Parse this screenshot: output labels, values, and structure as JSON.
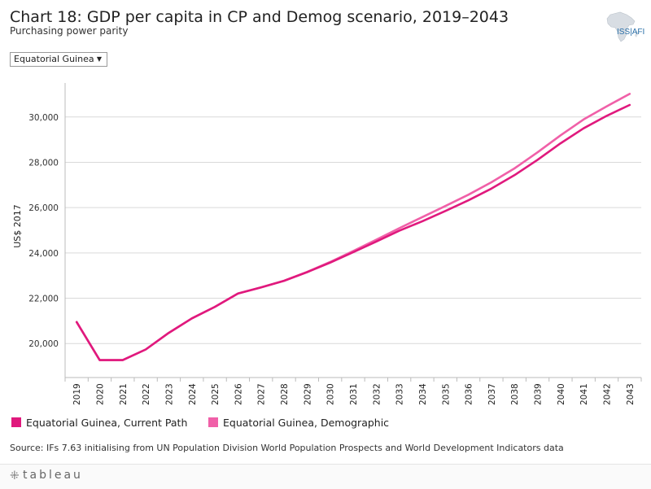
{
  "header": {
    "title": "Chart 18: GDP per capita in CP and Demog scenario, 2019–2043",
    "subtitle": "Purchasing power parity",
    "logo_text": "ISS|AFI"
  },
  "filter": {
    "selected": "Equatorial Guinea",
    "arrow": "▼"
  },
  "legend": [
    {
      "label": "Equatorial Guinea, Current Path",
      "color": "#e0197d"
    },
    {
      "label": "Equatorial Guinea, Demographic",
      "color": "#f060a8"
    }
  ],
  "source_note": "Source: IFs 7.63 initialising from UN Population Division World Population Prospects and World Development Indicators data",
  "footer": {
    "brand": "tableau",
    "mark": "⁜"
  },
  "chart_data": {
    "type": "line",
    "title": "Chart 18: GDP per capita in CP and Demog scenario, 2019–2043",
    "ylabel": "US$ 2017",
    "xlabel": "",
    "ylim": [
      18500,
      31500
    ],
    "yticks": [
      20000,
      22000,
      24000,
      26000,
      28000,
      30000
    ],
    "ytick_labels": [
      "20,000",
      "22,000",
      "24,000",
      "26,000",
      "28,000",
      "30,000"
    ],
    "x": [
      "2019",
      "2020",
      "2021",
      "2022",
      "2023",
      "2024",
      "2025",
      "2026",
      "2027",
      "2028",
      "2029",
      "2030",
      "2031",
      "2032",
      "2033",
      "2034",
      "2035",
      "2036",
      "2037",
      "2038",
      "2039",
      "2040",
      "2041",
      "2042",
      "2043"
    ],
    "grid": true,
    "series": [
      {
        "name": "Equatorial Guinea, Current Path",
        "color": "#e0197d",
        "values": [
          20950,
          19270,
          19270,
          19740,
          20470,
          21110,
          21620,
          22210,
          22480,
          22770,
          23150,
          23570,
          24030,
          24500,
          24980,
          25400,
          25850,
          26320,
          26840,
          27430,
          28110,
          28840,
          29500,
          30050,
          30530
        ]
      },
      {
        "name": "Equatorial Guinea, Demographic",
        "color": "#f060a8",
        "values": [
          20950,
          19270,
          19270,
          19740,
          20470,
          21110,
          21620,
          22210,
          22480,
          22770,
          23160,
          23600,
          24080,
          24580,
          25090,
          25580,
          26070,
          26570,
          27120,
          27730,
          28440,
          29190,
          29890,
          30470,
          31020
        ]
      }
    ]
  }
}
